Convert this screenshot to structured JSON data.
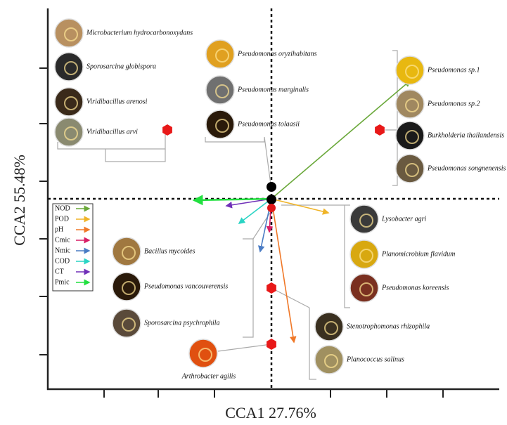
{
  "axes": {
    "x_label": "CCA1 27.76%",
    "y_label": "CCA2 55.48%"
  },
  "legend": [
    {
      "label": "NOD",
      "color": "#6aa83a"
    },
    {
      "label": "POD",
      "color": "#f0b428"
    },
    {
      "label": "pH",
      "color": "#f07828"
    },
    {
      "label": "Cmic",
      "color": "#d81e66"
    },
    {
      "label": "Nmic",
      "color": "#4a7cc4"
    },
    {
      "label": "COD",
      "color": "#2ad4c4"
    },
    {
      "label": "CT",
      "color": "#7030b8"
    },
    {
      "label": "Pmic",
      "color": "#22e040"
    }
  ],
  "groups": [
    {
      "species": [
        "Microbacterium hydrocarbonoxydans",
        "Sporosarcina globispora",
        "Viridibacillus arenosi",
        "Viridibacillus arvi"
      ]
    },
    {
      "species": [
        "Pseudomonas oryzihabitans",
        "Pseudomonas marginalis",
        "Pseudomonas tolaasii"
      ]
    },
    {
      "species": [
        "Pseudomonas sp.1",
        "Pseudomonas sp.2",
        "Burkholderia thailandensis",
        "Pseudomonas songnenensis"
      ]
    },
    {
      "species": [
        "Lysobacter agri",
        "Planomicrobium flavidum",
        "Pseudomonas koreensis"
      ]
    },
    {
      "species": [
        "Bacillus mycoides",
        "Pseudomonas vancouverensis",
        "Sporosarcina psychrophila"
      ]
    },
    {
      "species": [
        "Stenotrophomonas rhizophila",
        "Planococcus salinus"
      ]
    },
    {
      "species": [
        "Arthrobacter agilis"
      ]
    }
  ]
}
